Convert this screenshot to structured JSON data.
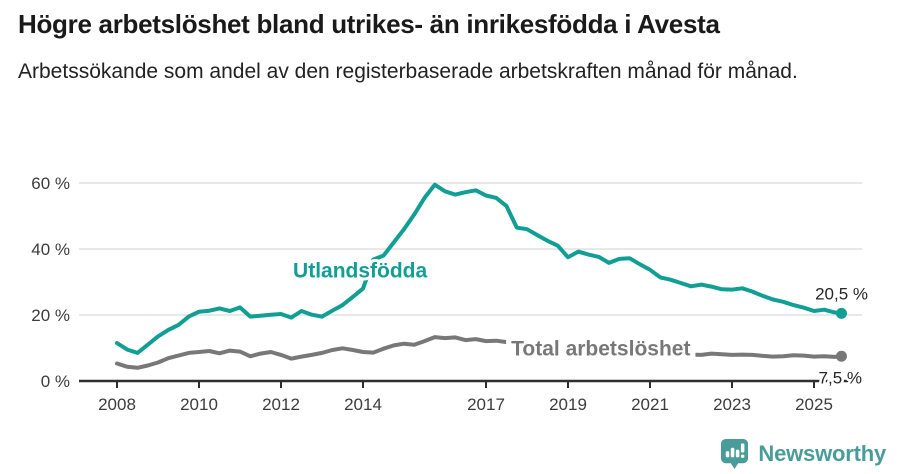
{
  "header": {
    "title": "Högre arbetslöshet bland utrikes- än inrikesfödda i Avesta",
    "subtitle": "Arbetssökande som andel av den registerbaserade arbetskraften månad för månad."
  },
  "footer": {
    "brand": "Newsworthy",
    "logo_icon": "newsworthy-pin-barchart-icon",
    "brand_color": "#4a9c9b"
  },
  "chart_data": {
    "type": "line",
    "title": "Högre arbetslöshet bland utrikes- än inrikesfödda i Avesta",
    "subtitle": "Arbetssökande som andel av den registerbaserade arbetskraften månad för månad.",
    "grid": "horizontal-only",
    "legend_position": "inline-labels",
    "ylim": [
      0,
      62
    ],
    "xlim": [
      2007.1,
      2026.2
    ],
    "y_ticks": [
      {
        "value": 0,
        "label": "0 %"
      },
      {
        "value": 20,
        "label": "20 %"
      },
      {
        "value": 40,
        "label": "40 %"
      },
      {
        "value": 60,
        "label": "60 %"
      }
    ],
    "x_ticks": [
      "2008",
      "2010",
      "2012",
      "2014",
      "2017",
      "2019",
      "2021",
      "2023",
      "2025"
    ],
    "x": [
      2008,
      2008.25,
      2008.5,
      2008.75,
      2009,
      2009.25,
      2009.5,
      2009.75,
      2010,
      2010.25,
      2010.5,
      2010.75,
      2011,
      2011.25,
      2011.5,
      2011.75,
      2012,
      2012.25,
      2012.5,
      2012.75,
      2013,
      2013.25,
      2013.5,
      2013.75,
      2014,
      2014.25,
      2014.5,
      2014.75,
      2015,
      2015.25,
      2015.5,
      2015.75,
      2016,
      2016.25,
      2016.5,
      2016.75,
      2017,
      2017.25,
      2017.5,
      2017.75,
      2018,
      2018.25,
      2018.5,
      2018.75,
      2019,
      2019.25,
      2019.5,
      2019.75,
      2020,
      2020.25,
      2020.5,
      2020.75,
      2021,
      2021.25,
      2021.5,
      2021.75,
      2022,
      2022.25,
      2022.5,
      2022.75,
      2023,
      2023.25,
      2023.5,
      2023.75,
      2024,
      2024.25,
      2024.5,
      2024.75,
      2025,
      2025.25,
      2025.5,
      2025.67
    ],
    "series": [
      {
        "name": "Utlandsfödda",
        "color": "#119e94",
        "end_label": "20,5 %",
        "end_value": 20.5,
        "label_pos": {
          "x": 2013.93,
          "y": 33.5
        },
        "values": [
          11.5,
          9.5,
          8.5,
          11.0,
          13.5,
          15.5,
          17.0,
          19.5,
          21.0,
          21.3,
          22.0,
          21.2,
          22.3,
          19.5,
          19.8,
          20.1,
          20.3,
          19.2,
          21.2,
          20.1,
          19.5,
          21.3,
          23.0,
          25.5,
          28.0,
          36.8,
          38.0,
          42.0,
          46.0,
          50.5,
          55.5,
          59.5,
          57.5,
          56.5,
          57.2,
          57.8,
          56.2,
          55.5,
          53.0,
          46.5,
          46.0,
          44.2,
          42.5,
          41.0,
          37.5,
          39.2,
          38.3,
          37.6,
          35.8,
          37.0,
          37.2,
          35.4,
          33.7,
          31.4,
          30.7,
          29.7,
          28.7,
          29.2,
          28.6,
          27.8,
          27.7,
          28.1,
          27.1,
          25.8,
          24.7,
          24.0,
          23.0,
          22.2,
          21.2,
          21.6,
          20.8,
          20.5
        ]
      },
      {
        "name": "Total arbetslöshet",
        "color": "#787878",
        "end_label": "7,5 %",
        "end_value": 7.5,
        "label_pos": {
          "x": 2019.8,
          "y": 9.8
        },
        "values": [
          5.3,
          4.3,
          4.0,
          4.7,
          5.6,
          6.9,
          7.7,
          8.5,
          8.8,
          9.1,
          8.4,
          9.2,
          8.9,
          7.5,
          8.3,
          8.8,
          7.9,
          6.8,
          7.4,
          7.9,
          8.5,
          9.4,
          9.9,
          9.4,
          8.8,
          8.6,
          9.8,
          10.8,
          11.3,
          11.0,
          12.1,
          13.3,
          13.0,
          13.2,
          12.4,
          12.7,
          12.1,
          12.2,
          11.8,
          11.4,
          11.0,
          10.7,
          10.3,
          9.9,
          9.7,
          9.5,
          9.3,
          9.1,
          9.0,
          9.4,
          9.5,
          9.2,
          8.9,
          8.6,
          8.4,
          8.2,
          8.0,
          7.9,
          8.3,
          8.1,
          7.9,
          8.0,
          7.9,
          7.6,
          7.4,
          7.5,
          7.8,
          7.7,
          7.4,
          7.5,
          7.3,
          7.5
        ]
      }
    ]
  }
}
